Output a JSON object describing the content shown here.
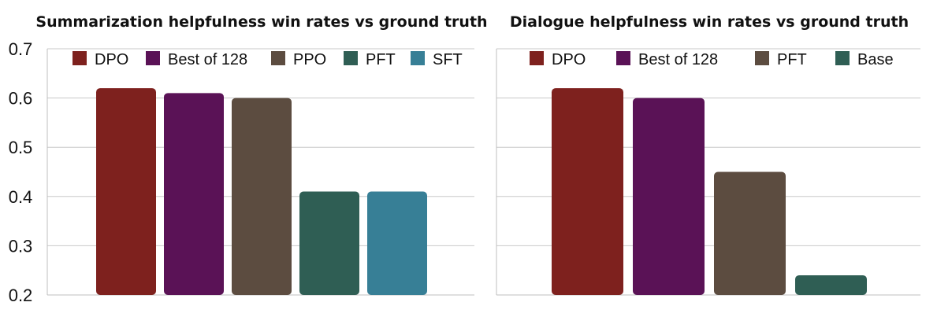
{
  "chart_data": [
    {
      "type": "bar",
      "title": "Summarization helpfulness win rates vs ground truth",
      "xlabel": "",
      "ylabel": "",
      "ylim": [
        0.2,
        0.7
      ],
      "yticks": [
        "0.2",
        "0.3",
        "0.4",
        "0.5",
        "0.6",
        "0.7"
      ],
      "grid": true,
      "legend_position": "top",
      "series": [
        {
          "name": "DPO",
          "value": 0.62,
          "color": "#7e211e"
        },
        {
          "name": "Best of 128",
          "value": 0.61,
          "color": "#5a1256"
        },
        {
          "name": "PPO",
          "value": 0.6,
          "color": "#5c4c40"
        },
        {
          "name": "PFT",
          "value": 0.41,
          "color": "#2f5e54"
        },
        {
          "name": "SFT",
          "value": 0.41,
          "color": "#377f96"
        }
      ]
    },
    {
      "type": "bar",
      "title": "Dialogue helpfulness win rates vs ground truth",
      "xlabel": "",
      "ylabel": "",
      "ylim": [
        0.2,
        0.7
      ],
      "grid": true,
      "legend_position": "top",
      "series": [
        {
          "name": "DPO",
          "value": 0.62,
          "color": "#7e211e"
        },
        {
          "name": "Best of 128",
          "value": 0.6,
          "color": "#5a1256"
        },
        {
          "name": "PFT",
          "value": 0.45,
          "color": "#5c4c40"
        },
        {
          "name": "Base",
          "value": 0.24,
          "color": "#2f5e54"
        }
      ]
    }
  ]
}
